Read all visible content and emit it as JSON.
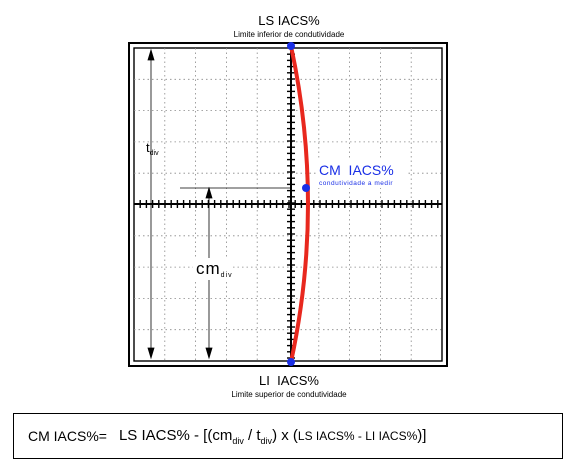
{
  "top_label": {
    "title": "LS IACS%",
    "subtitle": "Limite inferior de condutividade"
  },
  "bottom_label": {
    "title": "LI  IACS%",
    "subtitle": "Limite superior de condutividade"
  },
  "measured_point": {
    "title": "CM  IACS%",
    "subtitle": "condutividade a medir"
  },
  "left_dim": {
    "t_letter": "t",
    "t_sub": "div",
    "cm_letters": "cm",
    "cm_sub": "div"
  },
  "formula": {
    "label": "CM IACS%=",
    "ls": "LS IACS%",
    "dash1": " - [(",
    "cm": "cm",
    "cm_sub": "div",
    "slash": " / ",
    "t": "t",
    "t_sub": "div",
    "close1": ") x (",
    "inner": "LS IACS% - LI IACS%",
    "close2": ")]"
  },
  "colors": {
    "curve": "#e8281e",
    "point": "#1a2fe6",
    "point_text": "#1a2fe6"
  }
}
